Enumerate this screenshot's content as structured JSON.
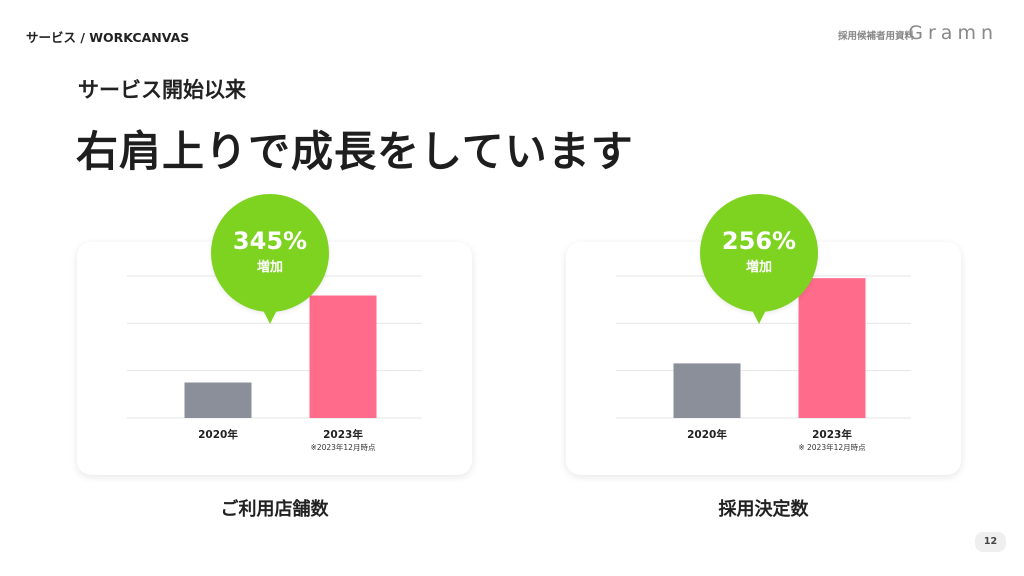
{
  "header": {
    "breadcrumb": "サービス / WORKCANVAS",
    "doc_label": "採用候補者用資料",
    "logo_text": "Gramn"
  },
  "main": {
    "subtitle": "サービス開始以来",
    "title": "右肩上りで成長をしています"
  },
  "colors": {
    "bar_2020": "#8a8f99",
    "bar_2023": "#ff6b8b",
    "bubble": "#7ed321",
    "grid": "#e6e6e6"
  },
  "chart_data": [
    {
      "type": "bar",
      "title": "ご利用店舗数",
      "categories": [
        "2020年",
        "2023年"
      ],
      "category_notes": [
        "",
        "※2023年12月時点"
      ],
      "values": [
        100,
        345
      ],
      "ylim": [
        0,
        400
      ],
      "grid": true,
      "badge": {
        "value": "345%",
        "label": "増加"
      }
    },
    {
      "type": "bar",
      "title": "採用決定数",
      "categories": [
        "2020年",
        "2023年"
      ],
      "category_notes": [
        "",
        "※ 2023年12月時点"
      ],
      "values": [
        100,
        256
      ],
      "ylim": [
        0,
        260
      ],
      "grid": true,
      "badge": {
        "value": "256%",
        "label": "増加"
      }
    }
  ],
  "footer": {
    "page_number": "12"
  }
}
